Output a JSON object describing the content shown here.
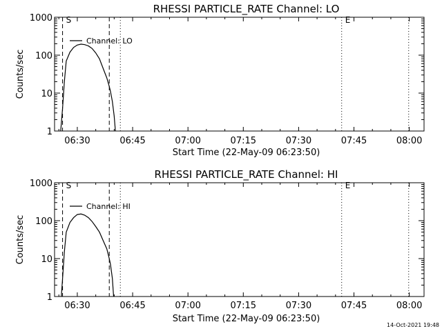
{
  "chart_data": [
    {
      "type": "line",
      "title": "RHESSI PARTICLE_RATE Channel: LO",
      "xlabel": "Start Time (22-May-09 06:23:50)",
      "ylabel": "Counts/sec",
      "yscale": "log",
      "ylim": [
        1,
        1000
      ],
      "xlim": [
        "06:23:50",
        "08:04:00"
      ],
      "x_ticks": [
        "06:30",
        "06:45",
        "07:00",
        "07:15",
        "07:30",
        "07:45",
        "08:00"
      ],
      "y_ticks": [
        "1",
        "10",
        "100",
        "1000"
      ],
      "legend": {
        "label": "Channel: LO",
        "placement": "top-left"
      },
      "markers": [
        {
          "label": "S",
          "time": "06:26:00"
        },
        {
          "label": "E",
          "time": "07:41:40"
        }
      ],
      "dashed_lines": [
        "06:26:00",
        "06:38:40"
      ],
      "dotted_lines": [
        "06:41:40",
        "07:41:40",
        "07:59:50"
      ],
      "series": [
        {
          "x": [
            "06:25:30",
            "06:26:00",
            "06:26:30",
            "06:27:00",
            "06:28:00",
            "06:29:00",
            "06:30:00",
            "06:31:00",
            "06:32:00",
            "06:33:00",
            "06:34:00",
            "06:35:00",
            "06:36:00",
            "06:37:00",
            "06:38:00",
            "06:38:40",
            "06:39:00",
            "06:39:30",
            "06:40:00",
            "06:40:20"
          ],
          "y": [
            1,
            4,
            20,
            70,
            120,
            160,
            185,
            195,
            190,
            175,
            150,
            115,
            80,
            45,
            25,
            15,
            11,
            6,
            2.5,
            1
          ]
        }
      ]
    },
    {
      "type": "line",
      "title": "RHESSI PARTICLE_RATE Channel: HI",
      "xlabel": "Start Time (22-May-09 06:23:50)",
      "ylabel": "Counts/sec",
      "yscale": "log",
      "ylim": [
        1,
        1000
      ],
      "xlim": [
        "06:23:50",
        "08:04:00"
      ],
      "x_ticks": [
        "06:30",
        "06:45",
        "07:00",
        "07:15",
        "07:30",
        "07:45",
        "08:00"
      ],
      "y_ticks": [
        "1",
        "10",
        "100",
        "1000"
      ],
      "legend": {
        "label": "Channel: HI",
        "placement": "top-left"
      },
      "markers": [
        {
          "label": "S",
          "time": "06:26:00"
        },
        {
          "label": "E",
          "time": "07:41:40"
        }
      ],
      "dashed_lines": [
        "06:26:00",
        "06:38:40"
      ],
      "dotted_lines": [
        "06:41:40",
        "07:41:40",
        "07:59:50"
      ],
      "series": [
        {
          "x": [
            "06:25:40",
            "06:26:00",
            "06:26:30",
            "06:27:00",
            "06:28:00",
            "06:29:00",
            "06:30:00",
            "06:31:00",
            "06:32:00",
            "06:33:00",
            "06:34:00",
            "06:35:00",
            "06:36:00",
            "06:37:00",
            "06:38:00",
            "06:38:40",
            "06:39:00",
            "06:39:30",
            "06:39:50"
          ],
          "y": [
            1,
            3,
            15,
            50,
            90,
            120,
            145,
            150,
            140,
            120,
            95,
            70,
            50,
            30,
            18,
            10,
            7,
            3,
            1
          ]
        }
      ]
    }
  ],
  "footer": {
    "timestamp": "14-Oct-2021 19:48"
  }
}
